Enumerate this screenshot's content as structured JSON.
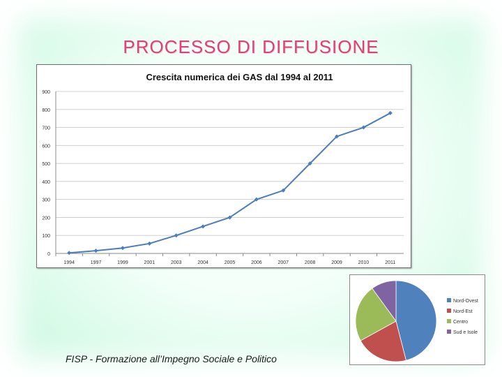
{
  "slide": {
    "title": "PROCESSO DI DIFFUSIONE",
    "footer": "FISP - Formazione all’Impegno Sociale e Politico"
  },
  "chart_data": [
    {
      "type": "line",
      "title": "Crescita numerica dei GAS dal 1994 al 2011",
      "categories": [
        "1994",
        "1997",
        "1999",
        "2001",
        "2003",
        "2004",
        "2005",
        "2006",
        "2007",
        "2008",
        "2009",
        "2010",
        "2011"
      ],
      "series": [
        {
          "values": [
            3,
            15,
            30,
            55,
            100,
            150,
            200,
            300,
            350,
            500,
            650,
            700,
            780
          ],
          "color": "#4a7ebb"
        }
      ],
      "ylim": [
        0,
        900
      ],
      "yticks": [
        0,
        100,
        200,
        300,
        400,
        500,
        600,
        700,
        800,
        900
      ],
      "grid": true,
      "xlabel": "",
      "ylabel": ""
    },
    {
      "type": "pie",
      "labels": [
        "Nord-Ovest",
        "Nord-Est",
        "Centro",
        "Sud e Isole"
      ],
      "values": [
        46,
        21,
        23,
        10
      ],
      "colors": [
        "#4f81bd",
        "#c0504d",
        "#9bbb59",
        "#8064a2"
      ],
      "legend": "right"
    }
  ]
}
